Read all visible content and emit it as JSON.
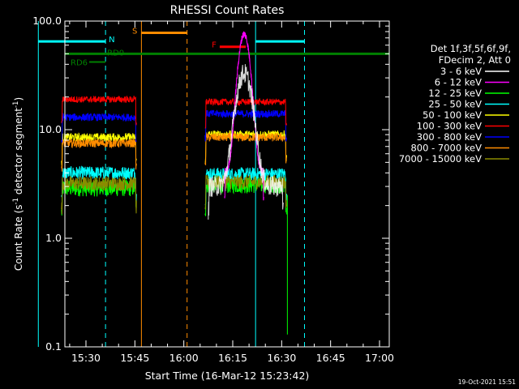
{
  "chart_data": {
    "type": "line",
    "title": "RHESSI Count Rates",
    "xlabel": "Start Time (16-Mar-12 15:23:42)",
    "ylabel_parts": [
      "Count Rate (s",
      "-1",
      " detector segment",
      "-1",
      ")"
    ],
    "y_scale": "log",
    "ylim": [
      0.1,
      100.0
    ],
    "xlim_minutes": [
      15.4,
      96.8
    ],
    "x_ticks": [
      {
        "label": "15:30",
        "min": 30
      },
      {
        "label": "15:45",
        "min": 45
      },
      {
        "label": "16:00",
        "min": 60
      },
      {
        "label": "16:15",
        "min": 75
      },
      {
        "label": "16:30",
        "min": 90
      },
      {
        "label": "16:45",
        "min": 105
      },
      {
        "label": "17:00",
        "min": 120
      }
    ],
    "y_ticks": [
      {
        "label": "0.1",
        "value": 0.1
      },
      {
        "label": "1.0",
        "value": 1.0
      },
      {
        "label": "10.0",
        "value": 10.0
      },
      {
        "label": "100.0",
        "value": 100.0
      }
    ],
    "legend_header": [
      "Det 1f,3f,5f,6f,9f,",
      "FDecim 2, Att 0"
    ],
    "series": [
      {
        "name": "3 - 6 keV",
        "color": "#000000"
      },
      {
        "name": "6 - 12 keV",
        "color": "#ff00ff"
      },
      {
        "name": "12 - 25 keV",
        "color": "#00ff00"
      },
      {
        "name": "25 - 50 keV",
        "color": "#00ffff"
      },
      {
        "name": "50 - 100 keV",
        "color": "#ffff00"
      },
      {
        "name": "100 - 300 keV",
        "color": "#ff0000"
      },
      {
        "name": "300 - 800 keV",
        "color": "#0000ff"
      },
      {
        "name": "800 - 7000 keV",
        "color": "#ff8c00"
      },
      {
        "name": "7000 - 15000 keV",
        "color": "#8b8b00"
      }
    ],
    "segments": [
      {
        "label": "N",
        "color": "#00ffff",
        "y": 65,
        "x0": 15.4,
        "x1": 36,
        "vertical_solid": 15.4,
        "vertical_dashed": 36
      },
      {
        "label": "N",
        "color": "#00ffff",
        "y": 65,
        "x0": 82,
        "x1": 97,
        "vertical_solid": 82,
        "vertical_dashed": 97
      },
      {
        "label": "S",
        "color": "#ff8c00",
        "y": 78,
        "x0": 47,
        "x1": 61,
        "vertical_solid": 47,
        "vertical_dashed": 61
      },
      {
        "label": "F",
        "color": "#ff0000",
        "y": 58,
        "x0": 71,
        "x1": 79
      },
      {
        "label": "RD0",
        "color": "#008000",
        "y": 50,
        "x0": 36,
        "x1": 40
      },
      {
        "label": "RD6",
        "color": "#008000",
        "y": 42,
        "x0": 31,
        "x1": 36
      }
    ],
    "data_gap_minutes": [
      45.5,
      66.5
    ]
  },
  "timestamp": "19-Oct-2021 15:51"
}
